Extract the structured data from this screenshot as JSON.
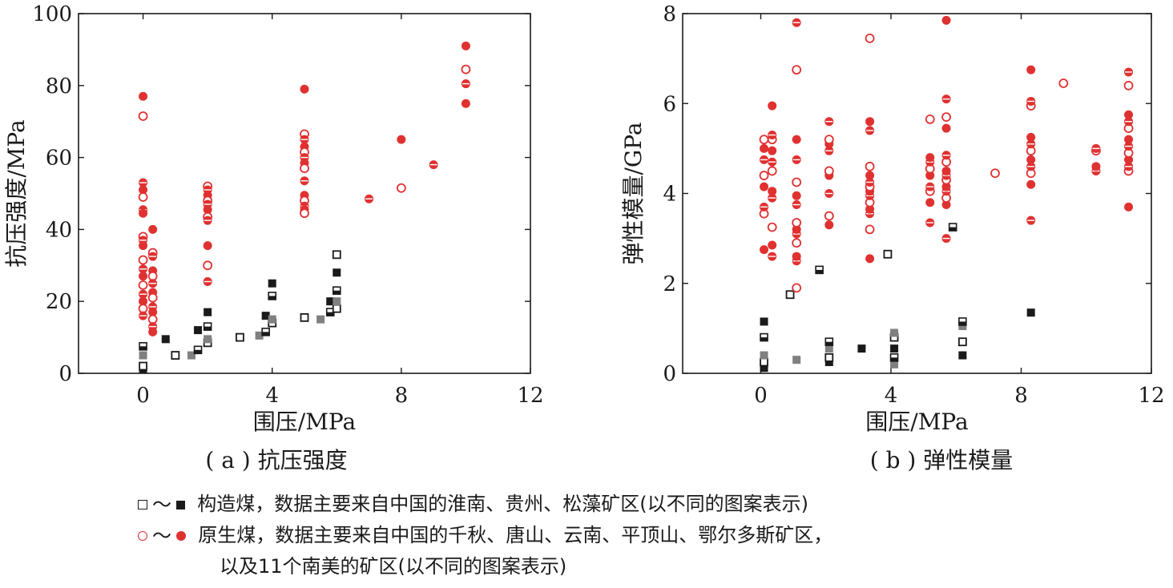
{
  "chart_data": [
    {
      "type": "scatter",
      "caption": "( a ) 抗压强度",
      "xlabel": "围压/MPa",
      "ylabel": "抗压强度/MPa",
      "xlim": [
        -2,
        12
      ],
      "ylim": [
        0,
        100
      ],
      "xticks": [
        "0",
        "4",
        "8",
        "12"
      ],
      "xtick_values": [
        0,
        4,
        8,
        12
      ],
      "yticks": [
        "0",
        "20",
        "40",
        "60",
        "80",
        "100"
      ],
      "ytick_values": [
        0,
        20,
        40,
        60,
        80,
        100
      ],
      "series": [
        {
          "group": "tectonic",
          "points": [
            [
              0,
              1
            ],
            [
              0,
              2
            ],
            [
              0,
              5
            ],
            [
              0,
              7.5
            ],
            [
              0.7,
              9.5
            ],
            [
              1,
              5
            ],
            [
              1.5,
              5
            ],
            [
              1.7,
              6.5
            ],
            [
              1.7,
              12
            ],
            [
              2,
              8.5
            ],
            [
              2,
              9.5
            ],
            [
              2,
              13
            ],
            [
              2,
              17
            ],
            [
              3,
              10
            ],
            [
              3.6,
              10.5
            ],
            [
              3.8,
              11.5
            ],
            [
              3.8,
              16
            ],
            [
              4,
              14
            ],
            [
              4,
              15
            ],
            [
              4,
              21.5
            ],
            [
              4,
              25
            ],
            [
              5,
              15.5
            ],
            [
              5.5,
              15
            ],
            [
              5.8,
              17
            ],
            [
              5.8,
              20
            ],
            [
              6,
              18
            ],
            [
              6,
              20
            ],
            [
              6,
              23
            ],
            [
              6,
              28
            ],
            [
              6,
              33
            ]
          ]
        },
        {
          "group": "primary",
          "points": [
            [
              0,
              77
            ],
            [
              0,
              71.5
            ],
            [
              0,
              53
            ],
            [
              0,
              51
            ],
            [
              0,
              49
            ],
            [
              0,
              45.5
            ],
            [
              0,
              44.5
            ],
            [
              0,
              38
            ],
            [
              0,
              37
            ],
            [
              0,
              35.5
            ],
            [
              0,
              31.5
            ],
            [
              0,
              29
            ],
            [
              0,
              27
            ],
            [
              0,
              24.5
            ],
            [
              0,
              22
            ],
            [
              0,
              20
            ],
            [
              0,
              18
            ],
            [
              0,
              16
            ],
            [
              0.3,
              40
            ],
            [
              0.3,
              33.5
            ],
            [
              0.3,
              32.5
            ],
            [
              0.3,
              28.5
            ],
            [
              0.3,
              27
            ],
            [
              0.3,
              25
            ],
            [
              0.3,
              22.5
            ],
            [
              0.3,
              21
            ],
            [
              0.3,
              18.5
            ],
            [
              0.3,
              17
            ],
            [
              0.3,
              15
            ],
            [
              0.3,
              13
            ],
            [
              0.3,
              11.5
            ],
            [
              2,
              52
            ],
            [
              2,
              51
            ],
            [
              2,
              49.5
            ],
            [
              2,
              48
            ],
            [
              2,
              47
            ],
            [
              2,
              45.5
            ],
            [
              2,
              43.5
            ],
            [
              2,
              42.5
            ],
            [
              2,
              35.5
            ],
            [
              2,
              30
            ],
            [
              2,
              25.5
            ],
            [
              5,
              79
            ],
            [
              5,
              66.5
            ],
            [
              5,
              65
            ],
            [
              5,
              63
            ],
            [
              5,
              61.5
            ],
            [
              5,
              60
            ],
            [
              5,
              58.5
            ],
            [
              5,
              57
            ],
            [
              5,
              53.5
            ],
            [
              5,
              49.5
            ],
            [
              5,
              48
            ],
            [
              5,
              46.5
            ],
            [
              5,
              45.5
            ],
            [
              5,
              44.5
            ],
            [
              7,
              48.5
            ],
            [
              8,
              65
            ],
            [
              8,
              51.5
            ],
            [
              9,
              58
            ],
            [
              10,
              91
            ],
            [
              10,
              84.5
            ],
            [
              10,
              80.5
            ],
            [
              10,
              75
            ]
          ]
        }
      ]
    },
    {
      "type": "scatter",
      "caption": "( b ) 弹性模量",
      "xlabel": "围压/MPa",
      "ylabel": "弹性模量/GPa",
      "xlim": [
        -2.4,
        12
      ],
      "ylim": [
        0,
        8
      ],
      "xticks": [
        "0",
        "4",
        "8",
        "12"
      ],
      "xtick_values": [
        0,
        4,
        8,
        12
      ],
      "yticks": [
        "0",
        "2",
        "4",
        "6",
        "8"
      ],
      "ytick_values": [
        0,
        2,
        4,
        6,
        8
      ],
      "series": [
        {
          "group": "tectonic",
          "points": [
            [
              0.1,
              0.12
            ],
            [
              0.1,
              0.25
            ],
            [
              0.1,
              0.4
            ],
            [
              0.1,
              0.8
            ],
            [
              0.1,
              1.15
            ],
            [
              0.9,
              1.75
            ],
            [
              1.1,
              0.3
            ],
            [
              1.8,
              2.3
            ],
            [
              2.1,
              0.25
            ],
            [
              2.1,
              0.35
            ],
            [
              2.1,
              0.55
            ],
            [
              2.1,
              0.7
            ],
            [
              3.1,
              0.55
            ],
            [
              3.9,
              2.65
            ],
            [
              4.1,
              0.2
            ],
            [
              4.1,
              0.35
            ],
            [
              4.1,
              0.55
            ],
            [
              4.1,
              0.8
            ],
            [
              4.1,
              0.9
            ],
            [
              5.9,
              3.25
            ],
            [
              6.2,
              0.4
            ],
            [
              6.2,
              0.7
            ],
            [
              6.2,
              1.05
            ],
            [
              6.2,
              1.15
            ],
            [
              8.3,
              1.35
            ]
          ]
        },
        {
          "group": "primary",
          "points": [
            [
              0.1,
              2.75
            ],
            [
              0.1,
              3.55
            ],
            [
              0.1,
              3.7
            ],
            [
              0.1,
              4.15
            ],
            [
              0.1,
              4.4
            ],
            [
              0.1,
              4.75
            ],
            [
              0.1,
              5.0
            ],
            [
              0.1,
              5.2
            ],
            [
              0.35,
              2.6
            ],
            [
              0.35,
              2.85
            ],
            [
              0.35,
              3.25
            ],
            [
              0.35,
              3.9
            ],
            [
              0.35,
              4.05
            ],
            [
              0.35,
              4.5
            ],
            [
              0.35,
              4.7
            ],
            [
              0.35,
              4.95
            ],
            [
              0.35,
              5.2
            ],
            [
              0.35,
              5.3
            ],
            [
              0.35,
              5.95
            ],
            [
              1.1,
              1.9
            ],
            [
              1.1,
              2.5
            ],
            [
              1.1,
              2.6
            ],
            [
              1.1,
              2.9
            ],
            [
              1.1,
              3.1
            ],
            [
              1.1,
              3.2
            ],
            [
              1.1,
              3.35
            ],
            [
              1.1,
              3.75
            ],
            [
              1.1,
              3.95
            ],
            [
              1.1,
              4.25
            ],
            [
              1.1,
              4.75
            ],
            [
              1.1,
              5.2
            ],
            [
              1.1,
              6.75
            ],
            [
              1.1,
              7.8
            ],
            [
              2.1,
              3.3
            ],
            [
              2.1,
              3.5
            ],
            [
              2.1,
              4.0
            ],
            [
              2.1,
              4.4
            ],
            [
              2.1,
              4.5
            ],
            [
              2.1,
              4.95
            ],
            [
              2.1,
              5.1
            ],
            [
              2.1,
              5.2
            ],
            [
              2.1,
              5.6
            ],
            [
              3.35,
              2.55
            ],
            [
              3.35,
              3.2
            ],
            [
              3.35,
              3.55
            ],
            [
              3.35,
              3.65
            ],
            [
              3.35,
              3.8
            ],
            [
              3.35,
              3.95
            ],
            [
              3.35,
              4.05
            ],
            [
              3.35,
              4.15
            ],
            [
              3.35,
              4.25
            ],
            [
              3.35,
              4.4
            ],
            [
              3.35,
              4.6
            ],
            [
              3.35,
              5.4
            ],
            [
              3.35,
              5.6
            ],
            [
              3.35,
              7.45
            ],
            [
              5.2,
              3.35
            ],
            [
              5.2,
              3.8
            ],
            [
              5.2,
              4.05
            ],
            [
              5.2,
              4.15
            ],
            [
              5.2,
              4.4
            ],
            [
              5.2,
              4.55
            ],
            [
              5.2,
              4.7
            ],
            [
              5.2,
              4.8
            ],
            [
              5.2,
              5.65
            ],
            [
              5.7,
              3.0
            ],
            [
              5.7,
              3.75
            ],
            [
              5.7,
              3.9
            ],
            [
              5.7,
              4.05
            ],
            [
              5.7,
              4.15
            ],
            [
              5.7,
              4.3
            ],
            [
              5.7,
              4.4
            ],
            [
              5.7,
              4.5
            ],
            [
              5.7,
              4.7
            ],
            [
              5.7,
              4.85
            ],
            [
              5.7,
              5.45
            ],
            [
              5.7,
              5.7
            ],
            [
              5.7,
              6.1
            ],
            [
              5.7,
              7.85
            ],
            [
              7.2,
              4.45
            ],
            [
              8.3,
              3.4
            ],
            [
              8.3,
              4.2
            ],
            [
              8.3,
              4.45
            ],
            [
              8.3,
              4.6
            ],
            [
              8.3,
              4.75
            ],
            [
              8.3,
              4.95
            ],
            [
              8.3,
              5.1
            ],
            [
              8.3,
              5.25
            ],
            [
              8.3,
              5.95
            ],
            [
              8.3,
              6.05
            ],
            [
              8.3,
              6.75
            ],
            [
              9.3,
              6.45
            ],
            [
              10.3,
              4.5
            ],
            [
              10.3,
              4.6
            ],
            [
              10.3,
              4.95
            ],
            [
              10.3,
              5.0
            ],
            [
              11.3,
              3.7
            ],
            [
              11.3,
              4.5
            ],
            [
              11.3,
              4.6
            ],
            [
              11.3,
              4.75
            ],
            [
              11.3,
              4.9
            ],
            [
              11.3,
              5.05
            ],
            [
              11.3,
              5.2
            ],
            [
              11.3,
              5.45
            ],
            [
              11.3,
              5.6
            ],
            [
              11.3,
              5.75
            ],
            [
              11.3,
              6.4
            ],
            [
              11.3,
              6.7
            ]
          ]
        }
      ]
    }
  ],
  "legend": {
    "tilde": "～",
    "tectonic_text": "构造煤，数据主要来自中国的淮南、贵州、松藻矿区(以不同的图案表示)",
    "primary_text": "原生煤，数据主要来自中国的千秋、唐山、云南、平顶山、鄂尔多斯矿区，",
    "primary_text_2": "以及11个南美的矿区(以不同的图案表示)"
  },
  "colors": {
    "tectonic": "#1a1a1a",
    "tectonic_gray": "#808080",
    "primary": "#e03131",
    "axis": "#1a1a1a"
  }
}
